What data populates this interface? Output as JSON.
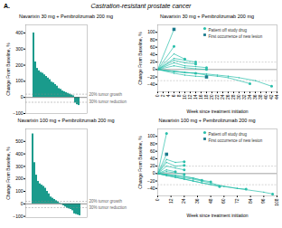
{
  "title": "Castration-resistant prostate cancer",
  "annotations": [
    {
      "text": "A."
    }
  ],
  "chart_data": [
    {
      "type": "bar",
      "title": "Navarixin 30 mg + Pembrolizumab 200 mg",
      "categories": [
        null,
        null,
        null,
        null,
        null,
        null,
        null,
        null,
        null,
        null,
        null,
        null,
        null,
        null,
        null,
        null,
        null,
        null,
        null,
        null,
        null,
        null,
        null,
        null,
        null,
        null
      ],
      "values": [
        400,
        220,
        180,
        165,
        155,
        150,
        140,
        130,
        120,
        110,
        95,
        90,
        80,
        70,
        55,
        50,
        40,
        35,
        30,
        25,
        20,
        15,
        10,
        -35,
        -45,
        -50
      ],
      "color": "#1a9b8c",
      "ylabel": "Change From Baseline, %",
      "ylim": [
        -100,
        450
      ],
      "yticks": [
        -100,
        0,
        100,
        200,
        300,
        400
      ],
      "reference_lines": [
        20,
        -30
      ],
      "annotations": [
        {
          "text": "20% tumor growth",
          "y": 20
        },
        {
          "text": "30% tumor reduction",
          "y": -30
        }
      ],
      "tick_labels": "y"
    },
    {
      "type": "line",
      "title": "Navarixin 30 mg + Pembrolizumab 200 mg",
      "xlabel": "Week since treatment initiation",
      "ylabel": "Change From Baseline, %",
      "xlim": [
        0,
        44
      ],
      "xticks": [
        0,
        2,
        4,
        6,
        8,
        10,
        12,
        14,
        16,
        18,
        20,
        22,
        24,
        26,
        28,
        30,
        32,
        34,
        36,
        38,
        40,
        42,
        44
      ],
      "ylim": [
        -60,
        120
      ],
      "yticks": [
        -40,
        -20,
        0,
        20,
        40,
        60,
        80,
        100
      ],
      "reference_lines": [
        20,
        -30
      ],
      "color": "#2abfab",
      "legend": "upper right",
      "legend_items": [
        {
          "name": "Patient off study drug",
          "marker": "circle",
          "color": "#2abfab"
        },
        {
          "name": "First occurrence of new lesion",
          "marker": "square",
          "color": "#1a7a8c"
        }
      ],
      "series": [
        {
          "x": [
            0,
            6
          ],
          "values": [
            0,
            108
          ],
          "marker": "square"
        },
        {
          "x": [
            0,
            6
          ],
          "values": [
            0,
            62
          ],
          "marker": "circle"
        },
        {
          "x": [
            0,
            6,
            10
          ],
          "values": [
            0,
            42,
            28
          ],
          "marker": "circle"
        },
        {
          "x": [
            0,
            6,
            10,
            14
          ],
          "values": [
            0,
            30,
            25,
            20
          ],
          "marker": "circle"
        },
        {
          "x": [
            0,
            6,
            10,
            14
          ],
          "values": [
            0,
            25,
            18,
            15
          ],
          "marker": "circle"
        },
        {
          "x": [
            0,
            6,
            10,
            14,
            18
          ],
          "values": [
            0,
            18,
            10,
            8,
            5
          ],
          "marker": "circle"
        },
        {
          "x": [
            0,
            6,
            10,
            14,
            18
          ],
          "values": [
            0,
            10,
            5,
            2,
            0
          ],
          "marker": "circle"
        },
        {
          "x": [
            0,
            6,
            10,
            14
          ],
          "values": [
            0,
            -5,
            -8,
            -10
          ],
          "marker": "circle"
        },
        {
          "x": [
            0,
            6,
            10,
            14,
            18
          ],
          "values": [
            0,
            -10,
            -15,
            -18,
            -20
          ],
          "marker": "square"
        },
        {
          "x": [
            0,
            6,
            10,
            14,
            18,
            22,
            26,
            34
          ],
          "values": [
            0,
            -5,
            -8,
            -10,
            -15,
            -18,
            -22,
            -38
          ],
          "marker": "circle"
        },
        {
          "x": [
            0,
            6,
            10,
            14,
            18,
            22,
            26,
            30,
            36,
            42
          ],
          "values": [
            0,
            -5,
            -8,
            -10,
            -12,
            -15,
            -18,
            -22,
            -30,
            -45
          ],
          "marker": "circle"
        }
      ]
    },
    {
      "type": "bar",
      "title": "Navarixin 100 mg + Pembrolizumab 200 mg",
      "categories": [
        null,
        null,
        null,
        null,
        null,
        null,
        null,
        null,
        null,
        null,
        null,
        null,
        null,
        null,
        null,
        null,
        null,
        null,
        null,
        null,
        null,
        null,
        null,
        null,
        null,
        null,
        null
      ],
      "values": [
        560,
        330,
        230,
        180,
        160,
        150,
        140,
        125,
        100,
        80,
        55,
        45,
        35,
        25,
        15,
        5,
        -5,
        -15,
        -25,
        -35,
        -40,
        -45,
        -55,
        -80,
        -85,
        -90,
        -95
      ],
      "color": "#1a9b8c",
      "ylabel": "Change From Baseline, %",
      "ylim": [
        -110,
        600
      ],
      "yticks": [
        -100,
        0,
        100,
        200,
        300,
        400,
        500
      ],
      "reference_lines": [
        20,
        -30
      ],
      "annotations": [
        {
          "text": "20% tumor growth",
          "y": 20
        },
        {
          "text": "30% tumor reduction",
          "y": -30
        }
      ],
      "tick_labels": "y"
    },
    {
      "type": "line",
      "title": "Navarixin 100 mg + Pembrolizumab 200 mg",
      "xlabel": "Week since treatment initiation",
      "ylabel": "Change From Baseline, %",
      "xlim": [
        0,
        108
      ],
      "xticks": [
        0,
        12,
        24,
        36,
        48,
        60,
        72,
        84,
        96,
        108
      ],
      "ylim": [
        -60,
        120
      ],
      "yticks": [
        -40,
        -20,
        0,
        20,
        40,
        60,
        80,
        100
      ],
      "reference_lines": [
        20,
        -30
      ],
      "color": "#2abfab",
      "legend": "upper right",
      "legend_items": [
        {
          "name": "Patient off study drug",
          "marker": "circle",
          "color": "#2abfab"
        },
        {
          "name": "First occurrence of new lesion",
          "marker": "square",
          "color": "#1a7a8c"
        }
      ],
      "series": [
        {
          "x": [
            0,
            8
          ],
          "values": [
            0,
            108
          ],
          "marker": "circle"
        },
        {
          "x": [
            0,
            8
          ],
          "values": [
            0,
            52
          ],
          "marker": "square"
        },
        {
          "x": [
            0,
            8,
            16,
            24
          ],
          "values": [
            0,
            38,
            30,
            32
          ],
          "marker": "circle"
        },
        {
          "x": [
            0,
            8,
            16,
            24
          ],
          "values": [
            0,
            30,
            20,
            22
          ],
          "marker": "circle"
        },
        {
          "x": [
            0,
            8,
            16,
            24
          ],
          "values": [
            0,
            20,
            15,
            10
          ],
          "marker": "circle"
        },
        {
          "x": [
            0,
            8,
            16
          ],
          "values": [
            0,
            10,
            5
          ],
          "marker": "circle"
        },
        {
          "x": [
            0,
            8,
            16,
            24
          ],
          "values": [
            0,
            5,
            2,
            -2
          ],
          "marker": "circle"
        },
        {
          "x": [
            0,
            8,
            16,
            24,
            32,
            40,
            60,
            72,
            80
          ],
          "values": [
            0,
            -5,
            -10,
            -15,
            -20,
            -25,
            -35,
            -40,
            -42
          ],
          "marker": "circle"
        },
        {
          "x": [
            0,
            8,
            16,
            24,
            32,
            40,
            48,
            56,
            72,
            96,
            104
          ],
          "values": [
            0,
            -5,
            -8,
            -12,
            -15,
            -20,
            -25,
            -32,
            -40,
            -50,
            -55
          ],
          "marker": "circle"
        },
        {
          "x": [
            0,
            8,
            16,
            24,
            32,
            40,
            48,
            56
          ],
          "values": [
            0,
            -5,
            -10,
            -15,
            -20,
            -25,
            -30,
            -35
          ],
          "marker": "circle"
        },
        {
          "x": [
            0,
            8,
            16,
            24,
            32,
            40
          ],
          "values": [
            0,
            -2,
            -5,
            -8,
            -12,
            -18
          ],
          "marker": "circle"
        },
        {
          "x": [
            0,
            8,
            16,
            24,
            32,
            40,
            48
          ],
          "values": [
            0,
            -2,
            -5,
            -8,
            -12,
            -18,
            -22
          ],
          "marker": "circle"
        }
      ]
    }
  ]
}
